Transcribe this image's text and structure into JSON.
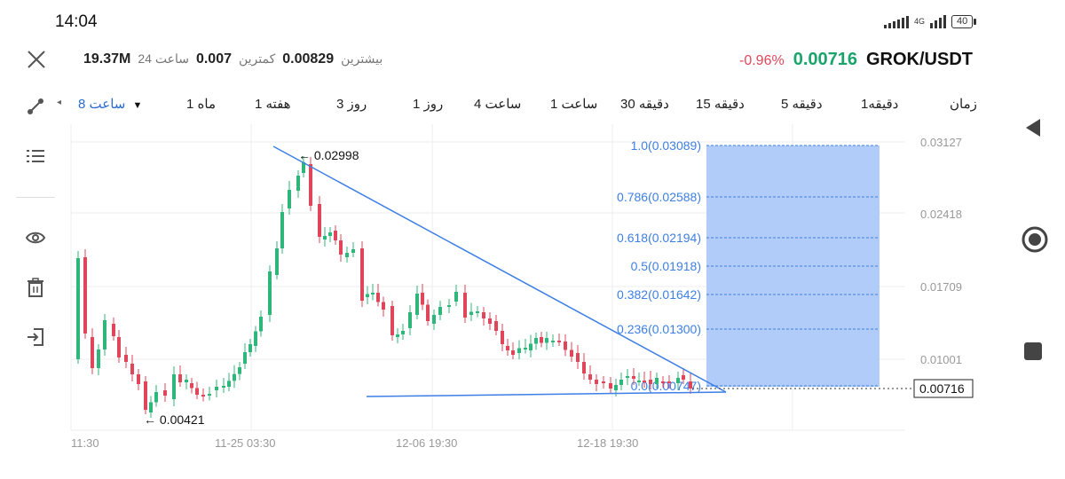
{
  "status": {
    "time": "14:04",
    "network": "4G",
    "battery": "40"
  },
  "header": {
    "volume_value": "19.37M",
    "volume_label": "24 ساعت",
    "low_value": "0.007",
    "low_label": "کمترین",
    "high_value": "0.00829",
    "high_label": "بیشترین",
    "change": "-0.96%",
    "price": "0.00716",
    "pair": "GROK/USDT"
  },
  "timeframes": {
    "active": "8 ساعت",
    "items": [
      "1 ماه",
      "1 هفته",
      "3 روز",
      "1 روز",
      "4 ساعت",
      "1 ساعت",
      "30 دقیقه",
      "15 دقیقه",
      "5 دقیقه",
      "1دقیقه",
      "زمان"
    ]
  },
  "chart": {
    "price_axis": [
      "0.03127",
      "0.02418",
      "0.01709",
      "0.01001"
    ],
    "current_price": "0.00716",
    "time_axis": [
      "11:30",
      "11-25 03:30",
      "12-06 19:30",
      "12-18 19:30"
    ],
    "high_marker": "0.02998",
    "low_marker": "0.00421",
    "fib_levels": [
      "1.0(0.03089)",
      "0.786(0.02588)",
      "0.618(0.02194)",
      "0.5(0.01918)",
      "0.382(0.01642)",
      "0.236(0.01300)",
      "0.0(0.00747)"
    ],
    "colors": {
      "up": "#2fb67a",
      "down": "#e0465a",
      "fib_fill": "#a9c7f7",
      "line": "#3d7fe6"
    }
  },
  "icons": {
    "close": "close-icon",
    "draw": "draw-tool-icon",
    "list": "list-icon",
    "eye": "eye-icon",
    "trash": "trash-icon",
    "exit": "exit-icon",
    "back": "back-icon",
    "home": "home-icon",
    "recent": "recent-apps-icon"
  }
}
